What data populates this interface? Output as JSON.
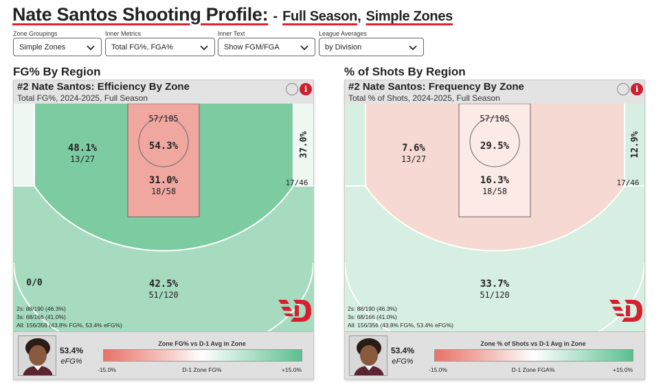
{
  "header": {
    "title": "Nate Santos Shooting Profile:",
    "dash": "-",
    "season": "Full Season",
    "comma": ",",
    "zones": "Simple Zones"
  },
  "controls": [
    {
      "label": "Zone Groupings",
      "value": "Simple Zones"
    },
    {
      "label": "Inner Metrics",
      "value": "Total FG%, FGA%"
    },
    {
      "label": "Inner Text",
      "value": "Show FGM/FGA"
    },
    {
      "label": "League Averages",
      "value": "by Division"
    }
  ],
  "left": {
    "section_title": "FG% By Region",
    "card_title": "#2 Nate Santos: Efficiency By Zone",
    "card_subtitle": "Total FG%, 2024-2025, Full Season",
    "zones": {
      "rim": {
        "pct": "54.3%",
        "frac": "57/105",
        "color": "#f0a7a0"
      },
      "paint": {
        "pct": "31.0%",
        "frac": "18/58",
        "color": "#f0a7a0"
      },
      "midrange": {
        "pct": "48.1%",
        "frac": "13/27",
        "color": "#7dcba1"
      },
      "corner3_right": {
        "pct": "37.0%",
        "frac": "17/46",
        "color": "#eef7f1"
      },
      "corner3_left": {
        "pct": "0/0",
        "frac": "",
        "color": "#eef7f1"
      },
      "above_break3": {
        "pct": "42.5%",
        "frac": "51/120",
        "color": "#a6dbbf"
      }
    },
    "stats": [
      "2s: 88/190 (46.3%)",
      "3s: 68/166 (41.0%)",
      "All: 156/356 (43.8% FG%, 53.4% eFG%)"
    ],
    "footer": {
      "efg_value": "53.4%",
      "efg_label": "eFG%",
      "legend_title": "Zone FG% vs D-1 Avg in Zone",
      "legend_min": "-15.0%",
      "legend_mid": "D-1 Zone FG%",
      "legend_max": "+15.0%"
    }
  },
  "right": {
    "section_title": "% of Shots By Region",
    "card_title": "#2 Nate Santos: Frequency By Zone",
    "card_subtitle": "Total % of Shots, 2024-2025, Full Season",
    "zones": {
      "rim": {
        "pct": "29.5%",
        "frac": "57/105",
        "color": "#fbeae6"
      },
      "paint": {
        "pct": "16.3%",
        "frac": "18/58",
        "color": "#fbeae6"
      },
      "midrange": {
        "pct": "7.6%",
        "frac": "13/27",
        "color": "#f7d9d3"
      },
      "corner3_right": {
        "pct": "12.9%",
        "frac": "17/46",
        "color": "#d6efe2"
      },
      "corner3_left": {
        "pct": "",
        "frac": "",
        "color": "#d6efe2"
      },
      "above_break3": {
        "pct": "33.7%",
        "frac": "51/120",
        "color": "#d6efe2"
      }
    },
    "stats": [
      "2s: 88/190 (46.3%)",
      "3s: 68/166 (41.0%)",
      "All: 156/356 (43.8% FG%, 53.4% eFG%)"
    ],
    "footer": {
      "efg_value": "53.4%",
      "efg_label": "eFG%",
      "legend_title": "Zone % of Shots vs D-1 Avg in Zone",
      "legend_min": "-15.0%",
      "legend_mid": "D-1 Zone FGA%",
      "legend_max": "+15.0%"
    }
  },
  "colors": {
    "accent_red": "#e0202a",
    "logo_red": "#d61f2f",
    "card_header": "#e3e3e3",
    "gradient_low": "#e97268",
    "gradient_high": "#5bbf8f"
  },
  "icons": [
    "chevron-down-icon",
    "toggle-circle-icon",
    "info-icon",
    "dayton-flyers-logo",
    "player-headshot"
  ]
}
